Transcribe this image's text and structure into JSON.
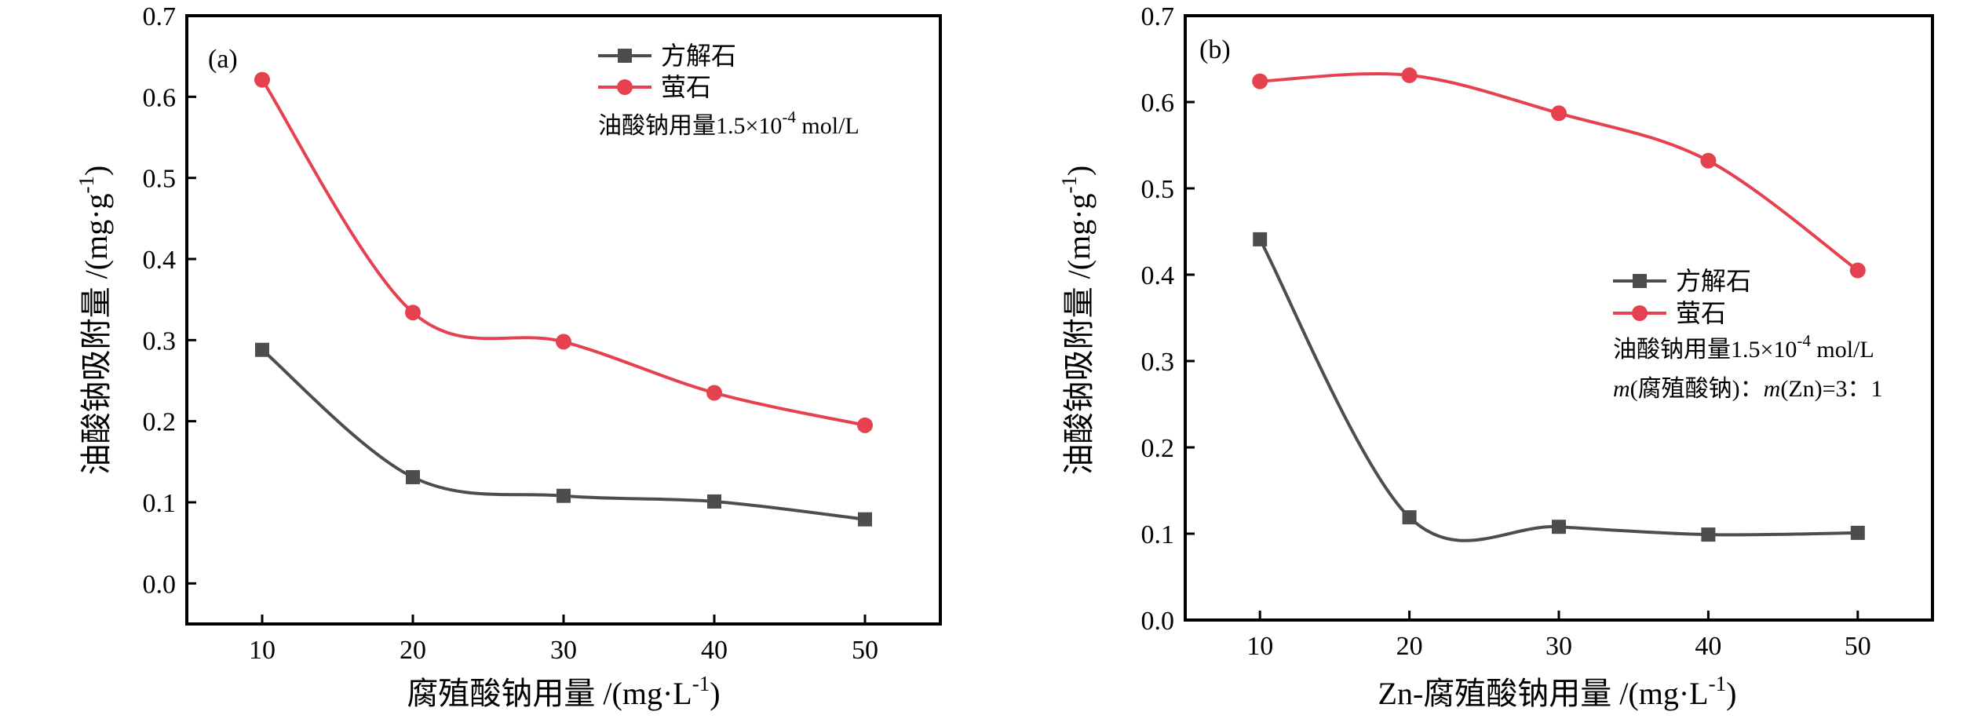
{
  "chart_data": [
    {
      "type": "line",
      "panel_label": "(a)",
      "xlabel": "腐殖酸钠用量 /(mg·L⁻¹)",
      "ylabel": "油酸钠吸附量 /(mg·g⁻¹)",
      "x": [
        10,
        20,
        30,
        40,
        50
      ],
      "xticks": [
        "10",
        "20",
        "30",
        "40",
        "50"
      ],
      "yticks": [
        "0.0",
        "0.1",
        "0.2",
        "0.3",
        "0.4",
        "0.5",
        "0.6",
        "0.7"
      ],
      "xlim": [
        5,
        55
      ],
      "ylim": [
        -0.05,
        0.7
      ],
      "series": [
        {
          "name": "方解石",
          "marker": "square",
          "color": "#4d4d4d",
          "values": [
            0.288,
            0.131,
            0.108,
            0.101,
            0.079
          ]
        },
        {
          "name": "萤石",
          "marker": "circle",
          "color": "#e5414e",
          "values": [
            0.621,
            0.334,
            0.298,
            0.235,
            0.195
          ]
        }
      ],
      "notes": [
        "油酸钠用量1.5×10⁻⁴ mol/L"
      ],
      "legend_position": "top-right",
      "grid": false
    },
    {
      "type": "line",
      "panel_label": "(b)",
      "xlabel": "Zn-腐殖酸钠用量 /(mg·L⁻¹)",
      "ylabel": "油酸钠吸附量 /(mg·g⁻¹)",
      "x": [
        10,
        20,
        30,
        40,
        50
      ],
      "xticks": [
        "10",
        "20",
        "30",
        "40",
        "50"
      ],
      "yticks": [
        "0.0",
        "0.1",
        "0.2",
        "0.3",
        "0.4",
        "0.5",
        "0.6",
        "0.7"
      ],
      "xlim": [
        5,
        55
      ],
      "ylim": [
        0.0,
        0.7
      ],
      "series": [
        {
          "name": "方解石",
          "marker": "square",
          "color": "#4d4d4d",
          "values": [
            0.441,
            0.119,
            0.108,
            0.099,
            0.101
          ]
        },
        {
          "name": "萤石",
          "marker": "circle",
          "color": "#e5414e",
          "values": [
            0.624,
            0.631,
            0.587,
            0.532,
            0.405
          ]
        }
      ],
      "notes": [
        "油酸钠用量1.5×10⁻⁴ mol/L",
        "m(腐殖酸钠)：m(Zn)=3：1"
      ],
      "legend_position": "center-right",
      "grid": false
    }
  ]
}
